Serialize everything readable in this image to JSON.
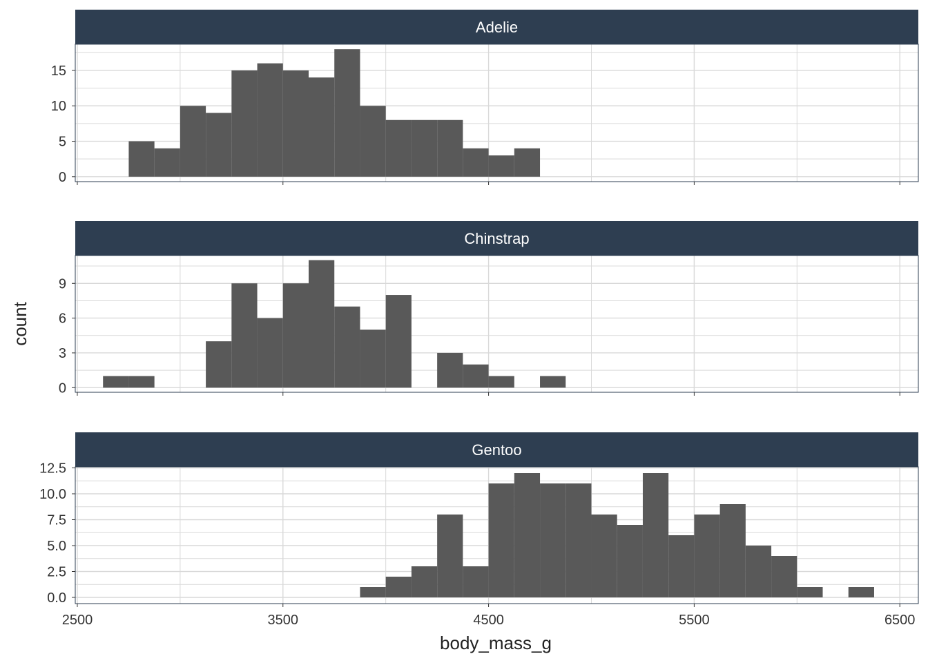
{
  "chart_data": {
    "type": "bar",
    "subtype": "faceted-histogram",
    "xlabel": "body_mass_g",
    "ylabel": "count",
    "x_ticks": [
      2500,
      3500,
      4500,
      5500,
      6500
    ],
    "xlim": [
      2490,
      6590
    ],
    "bin_width": 125,
    "grid": true,
    "colors": {
      "bar": "#595959",
      "strip_bg": "#2e3e51",
      "grid": "#d9d9d9",
      "panel_border": "#2e3e51"
    },
    "facets": [
      {
        "name": "Adelie",
        "ylim": [
          -0.7,
          18.7
        ],
        "y_ticks": [
          0,
          5,
          10,
          15
        ],
        "y_tick_labels": [
          "0",
          "5",
          "10",
          "15"
        ],
        "bins": [
          {
            "x": 2812.5,
            "count": 5
          },
          {
            "x": 2937.5,
            "count": 4
          },
          {
            "x": 3062.5,
            "count": 10
          },
          {
            "x": 3187.5,
            "count": 9
          },
          {
            "x": 3312.5,
            "count": 15
          },
          {
            "x": 3437.5,
            "count": 16
          },
          {
            "x": 3562.5,
            "count": 15
          },
          {
            "x": 3687.5,
            "count": 14
          },
          {
            "x": 3812.5,
            "count": 18
          },
          {
            "x": 3937.5,
            "count": 10
          },
          {
            "x": 4062.5,
            "count": 8
          },
          {
            "x": 4187.5,
            "count": 8
          },
          {
            "x": 4312.5,
            "count": 8
          },
          {
            "x": 4437.5,
            "count": 4
          },
          {
            "x": 4562.5,
            "count": 3
          },
          {
            "x": 4687.5,
            "count": 4
          }
        ]
      },
      {
        "name": "Chinstrap",
        "ylim": [
          -0.4,
          11.4
        ],
        "y_ticks": [
          0,
          3,
          6,
          9
        ],
        "y_tick_labels": [
          "0",
          "3",
          "6",
          "9"
        ],
        "bins": [
          {
            "x": 2687.5,
            "count": 1
          },
          {
            "x": 2812.5,
            "count": 1
          },
          {
            "x": 3187.5,
            "count": 4
          },
          {
            "x": 3312.5,
            "count": 9
          },
          {
            "x": 3437.5,
            "count": 6
          },
          {
            "x": 3562.5,
            "count": 9
          },
          {
            "x": 3687.5,
            "count": 11
          },
          {
            "x": 3812.5,
            "count": 7
          },
          {
            "x": 3937.5,
            "count": 5
          },
          {
            "x": 4062.5,
            "count": 8
          },
          {
            "x": 4312.5,
            "count": 3
          },
          {
            "x": 4437.5,
            "count": 2
          },
          {
            "x": 4562.5,
            "count": 1
          },
          {
            "x": 4812.5,
            "count": 1
          }
        ]
      },
      {
        "name": "Gentoo",
        "ylim": [
          -0.6,
          12.6
        ],
        "y_ticks": [
          0,
          2.5,
          5,
          7.5,
          10,
          12.5
        ],
        "y_tick_labels": [
          "0.0",
          "2.5",
          "5.0",
          "7.5",
          "10.0",
          "12.5"
        ],
        "bins": [
          {
            "x": 3937.5,
            "count": 1
          },
          {
            "x": 4062.5,
            "count": 2
          },
          {
            "x": 4187.5,
            "count": 3
          },
          {
            "x": 4312.5,
            "count": 8
          },
          {
            "x": 4437.5,
            "count": 3
          },
          {
            "x": 4562.5,
            "count": 11
          },
          {
            "x": 4687.5,
            "count": 12
          },
          {
            "x": 4812.5,
            "count": 11
          },
          {
            "x": 4937.5,
            "count": 11
          },
          {
            "x": 5062.5,
            "count": 8
          },
          {
            "x": 5187.5,
            "count": 7
          },
          {
            "x": 5312.5,
            "count": 12
          },
          {
            "x": 5437.5,
            "count": 6
          },
          {
            "x": 5562.5,
            "count": 8
          },
          {
            "x": 5687.5,
            "count": 9
          },
          {
            "x": 5812.5,
            "count": 5
          },
          {
            "x": 5937.5,
            "count": 4
          },
          {
            "x": 6062.5,
            "count": 1
          },
          {
            "x": 6312.5,
            "count": 1
          }
        ]
      }
    ]
  }
}
